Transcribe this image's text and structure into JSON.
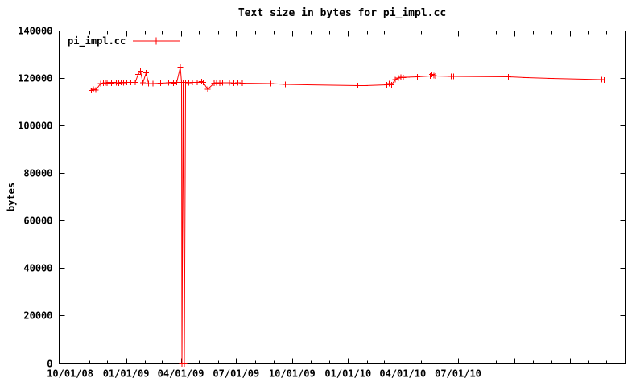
{
  "title": "Text size in bytes for pi_impl.cc",
  "legend": {
    "series_label": "pi_impl.cc",
    "position": "top-left"
  },
  "chart_data": {
    "type": "line",
    "title": "Text size in bytes for pi_impl.cc",
    "xlabel": "",
    "ylabel": "bytes",
    "series_color": "#ff0000",
    "axis_color": "#000000",
    "marker": "plus",
    "grid": false,
    "legend_position": "top-left",
    "x_axis": {
      "type": "date",
      "min": "2008-09-13",
      "max": "2011-04-03",
      "minor_tick_interval": "month",
      "major_tick_interval": "quarter",
      "labeled_ticks": [
        {
          "date": "2008-10-01",
          "label": "10/01/08"
        },
        {
          "date": "2009-01-01",
          "label": "01/01/09"
        },
        {
          "date": "2009-04-01",
          "label": "04/01/09"
        },
        {
          "date": "2009-07-01",
          "label": "07/01/09"
        },
        {
          "date": "2009-10-01",
          "label": "10/01/09"
        },
        {
          "date": "2010-01-01",
          "label": "01/01/10"
        },
        {
          "date": "2010-04-01",
          "label": "04/01/10"
        },
        {
          "date": "2010-07-01",
          "label": "07/01/10"
        }
      ]
    },
    "y_axis": {
      "label": "bytes",
      "min": 0,
      "max": 140000,
      "ticks": [
        0,
        20000,
        40000,
        60000,
        80000,
        100000,
        120000,
        140000
      ]
    },
    "series": [
      {
        "name": "pi_impl.cc",
        "points": [
          [
            "2008-11-05",
            115000
          ],
          [
            "2008-11-08",
            115400
          ],
          [
            "2008-11-12",
            115200
          ],
          [
            "2008-11-20",
            117800
          ],
          [
            "2008-11-25",
            118000
          ],
          [
            "2008-11-28",
            118200
          ],
          [
            "2008-12-01",
            118000
          ],
          [
            "2008-12-04",
            118300
          ],
          [
            "2008-12-08",
            118100
          ],
          [
            "2008-12-12",
            118300
          ],
          [
            "2008-12-16",
            118200
          ],
          [
            "2008-12-20",
            118000
          ],
          [
            "2008-12-24",
            118300
          ],
          [
            "2008-12-28",
            118200
          ],
          [
            "2009-01-02",
            118400
          ],
          [
            "2009-01-09",
            118300
          ],
          [
            "2009-01-16",
            118400
          ],
          [
            "2009-01-21",
            121800
          ],
          [
            "2009-01-25",
            123100
          ],
          [
            "2009-01-29",
            118200
          ],
          [
            "2009-02-03",
            122400
          ],
          [
            "2009-02-07",
            117900
          ],
          [
            "2009-02-14",
            117900
          ],
          [
            "2009-02-27",
            118000
          ],
          [
            "2009-03-12",
            118200
          ],
          [
            "2009-03-16",
            118400
          ],
          [
            "2009-03-20",
            118100
          ],
          [
            "2009-03-25",
            118400
          ],
          [
            "2009-03-31",
            124800
          ],
          [
            "2009-04-02",
            118400
          ],
          [
            "2009-04-03",
            0
          ],
          [
            "2009-04-05",
            118400
          ],
          [
            "2009-04-07",
            0
          ],
          [
            "2009-04-09",
            118400
          ],
          [
            "2009-04-14",
            118200
          ],
          [
            "2009-04-20",
            118400
          ],
          [
            "2009-04-28",
            118300
          ],
          [
            "2009-05-05",
            118700
          ],
          [
            "2009-05-08",
            118400
          ],
          [
            "2009-05-15",
            115500
          ],
          [
            "2009-05-26",
            118000
          ],
          [
            "2009-05-30",
            118200
          ],
          [
            "2009-06-04",
            118000
          ],
          [
            "2009-06-09",
            118200
          ],
          [
            "2009-06-20",
            118200
          ],
          [
            "2009-06-27",
            118100
          ],
          [
            "2009-07-04",
            118200
          ],
          [
            "2009-07-11",
            118100
          ],
          [
            "2009-08-27",
            117900
          ],
          [
            "2009-09-20",
            117500
          ],
          [
            "2010-01-17",
            117000
          ],
          [
            "2010-01-29",
            117000
          ],
          [
            "2010-03-06",
            117300
          ],
          [
            "2010-03-10",
            117800
          ],
          [
            "2010-03-14",
            117400
          ],
          [
            "2010-03-20",
            119500
          ],
          [
            "2010-03-25",
            120300
          ],
          [
            "2010-03-29",
            120500
          ],
          [
            "2010-04-02",
            120400
          ],
          [
            "2010-04-08",
            120600
          ],
          [
            "2010-04-25",
            120800
          ],
          [
            "2010-05-16",
            121100
          ],
          [
            "2010-05-19",
            121700
          ],
          [
            "2010-05-22",
            121200
          ],
          [
            "2010-05-25",
            121100
          ],
          [
            "2010-06-20",
            120900
          ],
          [
            "2010-06-24",
            120900
          ],
          [
            "2010-09-22",
            120800
          ],
          [
            "2010-10-21",
            120400
          ],
          [
            "2010-12-01",
            120100
          ],
          [
            "2011-02-22",
            119500
          ],
          [
            "2011-02-26",
            119400
          ]
        ]
      }
    ]
  }
}
